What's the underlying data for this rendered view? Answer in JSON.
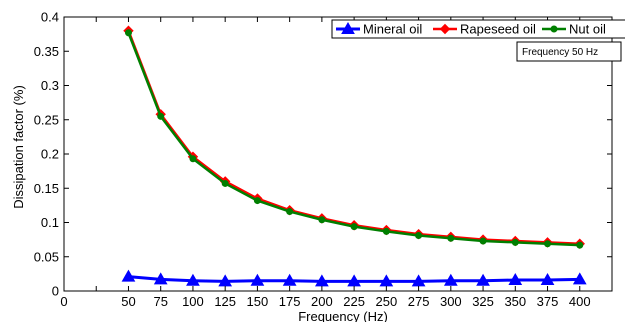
{
  "chart_data": {
    "type": "line",
    "title": "",
    "xlabel": "Frequency (Hz)",
    "ylabel": "Dissipation factor (%)",
    "xlim": [
      0,
      425
    ],
    "ylim": [
      0,
      0.4
    ],
    "x_ticks": [
      0,
      25,
      50,
      75,
      100,
      125,
      150,
      175,
      200,
      225,
      250,
      275,
      300,
      325,
      350,
      375,
      400,
      425
    ],
    "x_tick_labels": [
      "0",
      "",
      "50",
      "75",
      "100",
      "125",
      "150",
      "175",
      "200",
      "225",
      "250",
      "275",
      "300",
      "325",
      "350",
      "375",
      "400",
      ""
    ],
    "y_ticks": [
      0,
      0.05,
      0.1,
      0.15,
      0.2,
      0.25,
      0.3,
      0.35,
      0.4
    ],
    "y_tick_labels": [
      "0",
      "0.05",
      "0.1",
      "0.15",
      "0.2",
      "0.25",
      "0.3",
      "0.35",
      "0.4"
    ],
    "x": [
      50,
      75,
      100,
      125,
      150,
      175,
      200,
      225,
      250,
      275,
      300,
      325,
      350,
      375,
      400
    ],
    "grid": false,
    "legend_position": "top-right",
    "annotation": "Frequency 50 Hz",
    "series": [
      {
        "name": "Mineral oil",
        "color": "#0000ff",
        "marker": "triangle",
        "values": [
          0.021,
          0.017,
          0.015,
          0.014,
          0.015,
          0.015,
          0.014,
          0.014,
          0.014,
          0.014,
          0.015,
          0.015,
          0.016,
          0.016,
          0.017
        ]
      },
      {
        "name": "Rapeseed oil",
        "color": "#ff0000",
        "marker": "diamond",
        "values": [
          0.38,
          0.258,
          0.196,
          0.16,
          0.135,
          0.118,
          0.106,
          0.096,
          0.089,
          0.083,
          0.079,
          0.075,
          0.073,
          0.071,
          0.069
        ]
      },
      {
        "name": "Nut oil",
        "color": "#007f00",
        "marker": "circle",
        "values": [
          0.377,
          0.255,
          0.193,
          0.157,
          0.132,
          0.116,
          0.104,
          0.094,
          0.087,
          0.081,
          0.077,
          0.073,
          0.071,
          0.069,
          0.067
        ]
      }
    ]
  }
}
